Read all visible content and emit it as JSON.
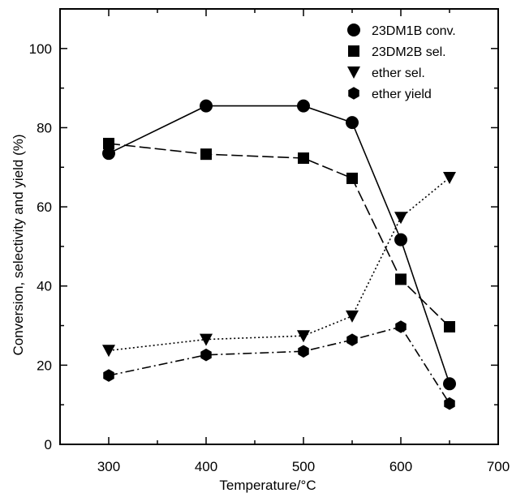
{
  "chart_data": {
    "type": "line",
    "title": "",
    "xlabel": "Temperature/",
    "xlabel_unit": "°C",
    "ylabel": "Conversion, selectivity and yield (%)",
    "xlim": [
      250,
      700
    ],
    "ylim": [
      0,
      110
    ],
    "xticks": [
      300,
      400,
      500,
      600,
      700
    ],
    "yticks": [
      0,
      20,
      40,
      60,
      80,
      100
    ],
    "grid": false,
    "legend_position": "top-right",
    "x": [
      300,
      400,
      500,
      550,
      600,
      650
    ],
    "series": [
      {
        "name": "23DM1B conv.",
        "marker": "circle",
        "line": "solid",
        "values": [
          73.5,
          85.5,
          85.5,
          81.3,
          51.7,
          15.3
        ]
      },
      {
        "name": "23DM2B sel.",
        "marker": "square",
        "line": "dashed",
        "values": [
          76.0,
          73.3,
          72.3,
          67.2,
          41.7,
          29.7
        ]
      },
      {
        "name": "ether sel.",
        "marker": "triangle-down",
        "line": "dotted",
        "values": [
          23.7,
          26.5,
          27.4,
          32.4,
          57.3,
          67.4
        ]
      },
      {
        "name": "ether yield",
        "marker": "hexagon",
        "line": "dashdot",
        "values": [
          17.4,
          22.6,
          23.5,
          26.4,
          29.7,
          10.3
        ]
      }
    ]
  }
}
